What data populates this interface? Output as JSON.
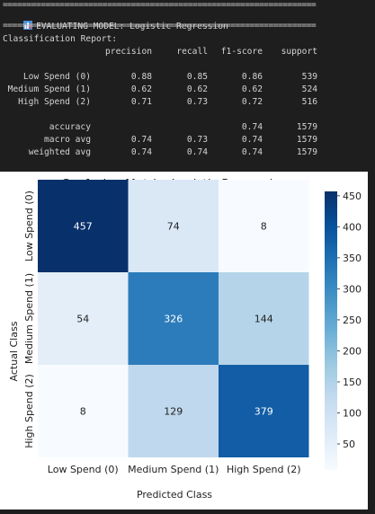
{
  "console": {
    "separator": "==================================================================",
    "header_text": "EVALUATING MODEL: Logistic Regression",
    "report_title": "Classification Report:",
    "columns": [
      "precision",
      "recall",
      "f1-score",
      "support"
    ],
    "class_rows": [
      {
        "label": "Low Spend (0)",
        "precision": "0.88",
        "recall": "0.85",
        "f1": "0.86",
        "support": "539"
      },
      {
        "label": "Medium Spend (1)",
        "precision": "0.62",
        "recall": "0.62",
        "f1": "0.62",
        "support": "524"
      },
      {
        "label": "High Spend (2)",
        "precision": "0.71",
        "recall": "0.73",
        "f1": "0.72",
        "support": "516"
      }
    ],
    "summary_rows": [
      {
        "label": "accuracy",
        "precision": "",
        "recall": "",
        "f1": "0.74",
        "support": "1579"
      },
      {
        "label": "macro avg",
        "precision": "0.74",
        "recall": "0.73",
        "f1": "0.74",
        "support": "1579"
      },
      {
        "label": "weighted avg",
        "precision": "0.74",
        "recall": "0.74",
        "f1": "0.74",
        "support": "1579"
      }
    ]
  },
  "chart_data": {
    "type": "heatmap",
    "title": "Confusion Matrix: Logistic Regression",
    "xlabel": "Predicted Class",
    "ylabel": "Actual Class",
    "x_categories": [
      "Low Spend (0)",
      "Medium Spend (1)",
      "High Spend (2)"
    ],
    "y_categories": [
      "Low Spend (0)",
      "Medium Spend (1)",
      "High Spend (2)"
    ],
    "values": [
      [
        457,
        74,
        8
      ],
      [
        54,
        326,
        144
      ],
      [
        8,
        129,
        379
      ]
    ],
    "colormap": "Blues",
    "colorbar_ticks": [
      50,
      100,
      150,
      200,
      250,
      300,
      350,
      400,
      450
    ],
    "vmin": 8,
    "vmax": 457
  }
}
